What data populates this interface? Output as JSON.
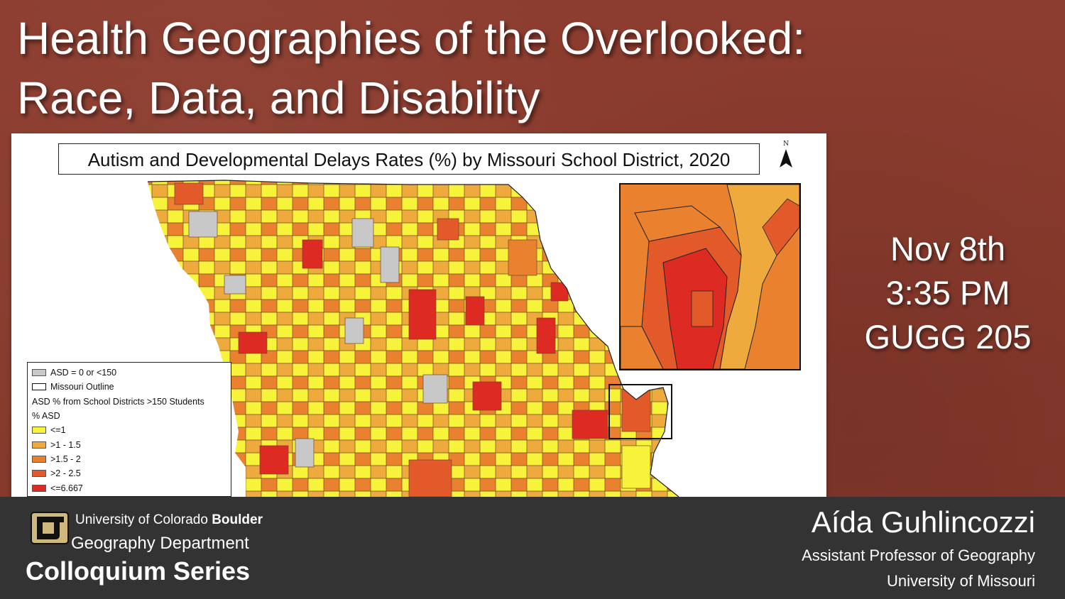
{
  "slide": {
    "title_line1": "Health Geographies of the Overlooked:",
    "title_line2": "Race, Data, and Disability"
  },
  "map": {
    "title": "Autism and Developmental Delays Rates (%) by Missouri School District, 2020",
    "north_label": "N",
    "legend": {
      "items": [
        {
          "label": "ASD = 0 or <150",
          "color": "#c8c8c8"
        },
        {
          "label": "Missouri Outline",
          "color": "#ffffff"
        },
        {
          "label": "ASD % from School Districts >150 Students",
          "color": null
        },
        {
          "label": "% ASD",
          "color": null
        },
        {
          "label": "<=1",
          "color": "#f7f23a"
        },
        {
          "label": ">1 - 1.5",
          "color": "#eeaa3c"
        },
        {
          "label": ">1.5 - 2",
          "color": "#e9812f"
        },
        {
          "label": ">2 - 2.5",
          "color": "#e35a2a"
        },
        {
          "label": "<=6.667",
          "color": "#dd2a22"
        }
      ]
    }
  },
  "event": {
    "date": "Nov 8th",
    "time": "3:35 PM",
    "room": "GUGG 205"
  },
  "footer": {
    "university_regular": "University of Colorado ",
    "university_bold": "Boulder",
    "department": "Geography Department",
    "series": "Colloquium Series",
    "speaker": "Aída Guhlincozzi",
    "role": "Assistant Professor of Geography",
    "affiliation": "University of Missouri"
  },
  "colors": {
    "background": "#8a3a2c",
    "footer": "#333333",
    "cu_gold": "#cfb87c"
  }
}
